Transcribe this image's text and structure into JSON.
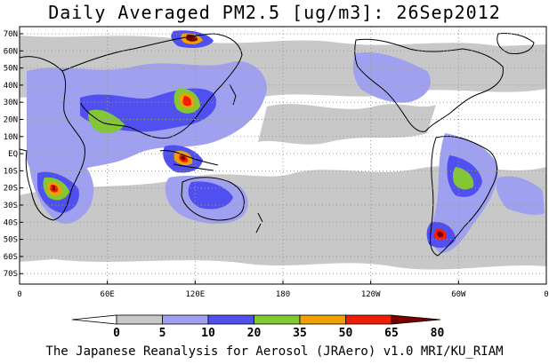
{
  "title": "Daily Averaged PM2.5 [ug/m3]: 26Sep2012",
  "footer": "The Japanese Reanalysis for Aerosol (JRAero) v1.0 MRI/KU_RIAM",
  "map": {
    "lon_ticks": [
      "0",
      "60E",
      "120E",
      "180",
      "120W",
      "60W",
      "0"
    ],
    "lat_ticks": [
      "70N",
      "60N",
      "50N",
      "40N",
      "30N",
      "20N",
      "10N",
      "EQ",
      "10S",
      "20S",
      "30S",
      "40S",
      "50S",
      "60S",
      "70S"
    ],
    "grid_style": "dotted",
    "land_outline_color": "#000000"
  },
  "colorbar": {
    "labels": [
      "0",
      "5",
      "10",
      "20",
      "35",
      "50",
      "65",
      "80"
    ],
    "colors": [
      "#ffffff",
      "#c8c8c8",
      "#a0a0f0",
      "#5050f0",
      "#82c832",
      "#f0a000",
      "#f01e00",
      "#780000"
    ]
  }
}
